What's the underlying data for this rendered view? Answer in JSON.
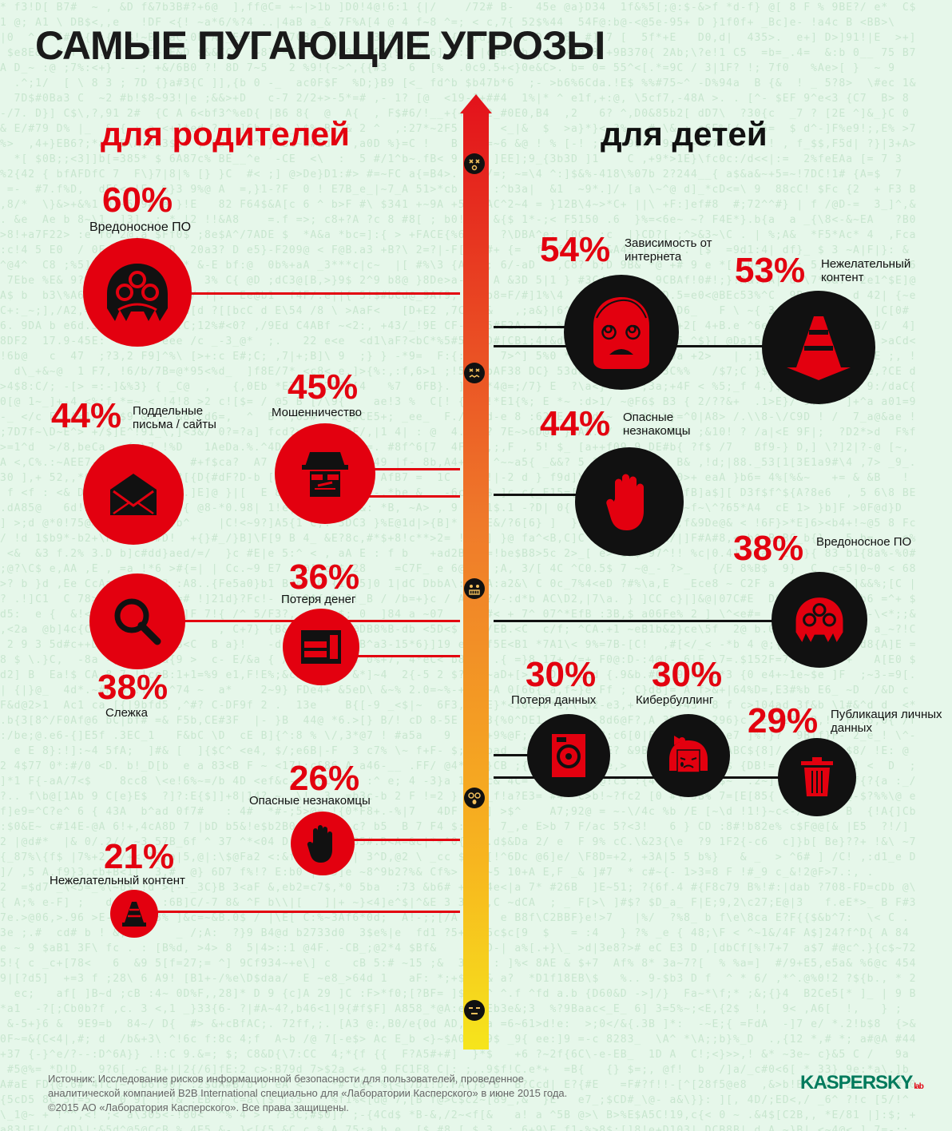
{
  "title": "САМЫЕ ПУГАЮЩИЕ УГРОЗЫ",
  "colors": {
    "accent": "#e3000f",
    "dark": "#111111",
    "logo": "#007a5c",
    "background": "#e6f7ea"
  },
  "parents": {
    "heading": "для родителей",
    "items": [
      {
        "pct": "60%",
        "label": "Вредоносное ПО",
        "icon": "malware-bug-icon"
      },
      {
        "pct": "44%",
        "label": "Поддельные письма / сайты",
        "icon": "envelope-icon"
      },
      {
        "pct": "45%",
        "label": "Мошенничество",
        "icon": "fraud-robber-icon"
      },
      {
        "pct": "36%",
        "label": "Потеря денег",
        "icon": "wallet-icon"
      },
      {
        "pct": "38%",
        "label": "Слежка",
        "icon": "magnifier-icon"
      },
      {
        "pct": "26%",
        "label": "Опасные незнакомцы",
        "icon": "stop-hand-icon"
      },
      {
        "pct": "21%",
        "label": "Нежелательный контент",
        "icon": "traffic-cone-icon"
      }
    ]
  },
  "kids": {
    "heading": "для детей",
    "items": [
      {
        "pct": "54%",
        "label": "Зависимость от интернета",
        "icon": "dizzy-face-icon"
      },
      {
        "pct": "53%",
        "label": "Нежелательный контент",
        "icon": "traffic-cone-icon"
      },
      {
        "pct": "44%",
        "label": "Опасные незнакомцы",
        "icon": "stop-hand-icon"
      },
      {
        "pct": "38%",
        "label": "Вредоносное ПО",
        "icon": "malware-bug-icon"
      },
      {
        "pct": "30%",
        "label": "Потеря данных",
        "icon": "hard-drive-icon"
      },
      {
        "pct": "30%",
        "label": "Кибербуллинг",
        "icon": "crying-girl-icon"
      },
      {
        "pct": "29%",
        "label": "Публикация личных данных",
        "icon": "trash-bin-icon"
      }
    ]
  },
  "scale_faces": [
    "dead-face-icon",
    "frustrated-face-icon",
    "grimace-face-icon",
    "shocked-face-icon",
    "neutral-face-icon"
  ],
  "footer": {
    "line1": "Источник: Исследование рисков информационной безопасности для пользователей, проведенное",
    "line2": "аналитической компанией B2B International специально для «Лаборатории Касперского» в июне 2015 года.",
    "line3": "©2015 АО «Лаборатория Касперского». Все права защищены."
  },
  "logo": {
    "text": "KASPERSKY",
    "suffix": "lab"
  }
}
